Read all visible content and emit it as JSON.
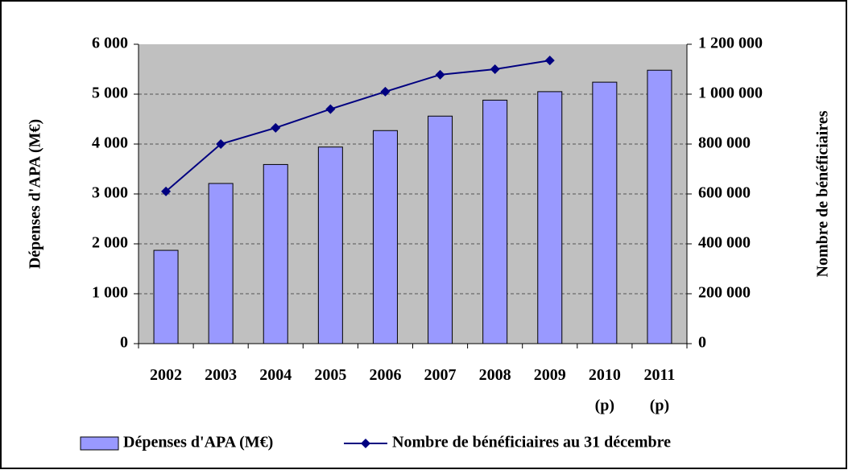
{
  "chart_data": {
    "type": "bar-line",
    "categories": [
      "2002",
      "2003",
      "2004",
      "2005",
      "2006",
      "2007",
      "2008",
      "2009",
      "2010 (p)",
      "2011 (p)"
    ],
    "series": [
      {
        "name": "Dépenses d'APA (M€)",
        "color": "#9999ff",
        "type": "bar",
        "axis": "y",
        "values": [
          1870,
          3210,
          3590,
          3940,
          4270,
          4560,
          4880,
          5050,
          5240,
          5480
        ]
      },
      {
        "name": "Nombre de bénéficiaires au 31 décembre",
        "color": "#000080",
        "type": "line",
        "axis": "y2",
        "values": [
          610000,
          800000,
          865000,
          940000,
          1010000,
          1078000,
          1100000,
          1135000,
          null,
          null
        ]
      }
    ],
    "ylabel": "Dépenses d'APA (M€)",
    "y2label": "Nombre de bénéficiaires",
    "ylim": [
      0,
      6000
    ],
    "yticks": [
      0,
      {
        "value": 1000,
        "label": "1 000"
      },
      {
        "value": 2000,
        "label": "2 000"
      },
      {
        "value": 3000,
        "label": "3 000"
      },
      {
        "value": 4000,
        "label": "4 000"
      },
      {
        "value": 5000,
        "label": "5 000"
      },
      {
        "value": 6000,
        "label": "6 000"
      }
    ],
    "y2lim": [
      0,
      1200000
    ],
    "y2ticks": [
      0,
      {
        "value": 200000,
        "label": "200 000"
      },
      {
        "value": 400000,
        "label": "400 000"
      },
      {
        "value": 600000,
        "label": "600 000"
      },
      {
        "value": 800000,
        "label": "800 000"
      },
      {
        "value": 1000000,
        "label": "1 000 000"
      },
      {
        "value": 1200000,
        "label": "1 200 000"
      }
    ],
    "grid": true,
    "legend": "bottom"
  }
}
